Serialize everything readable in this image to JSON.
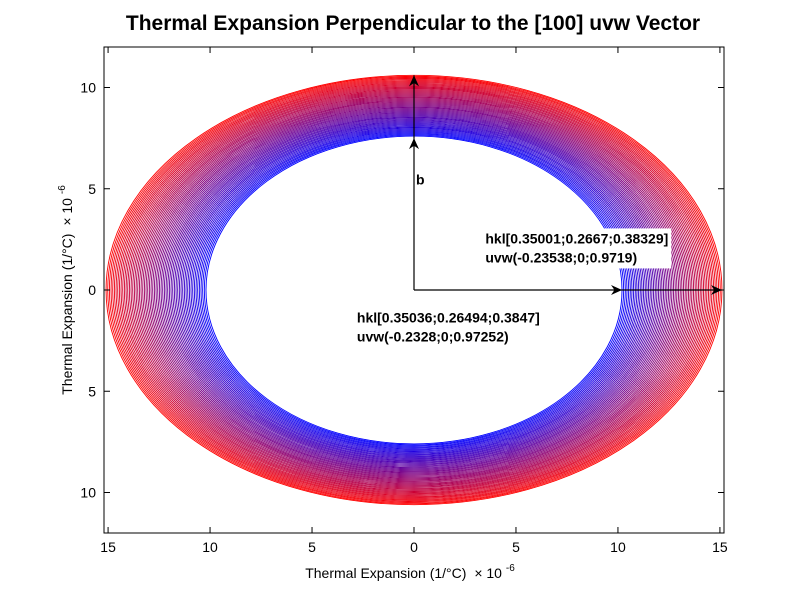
{
  "chart_data": {
    "type": "line",
    "title": "Thermal Expansion Perpendicular to the [100] uvw Vector",
    "xlabel": "Thermal Expansion (1/°C)",
    "ylabel": "Thermal Expansion (1/°C)",
    "axis_multiplier": "× 10",
    "axis_exponent": "-6",
    "xlim": [
      -15.2,
      15.2
    ],
    "ylim": [
      -12,
      12
    ],
    "xticks": [
      -15,
      -10,
      -5,
      0,
      5,
      10,
      15
    ],
    "xtick_labels": [
      "15",
      "10",
      "5",
      "0",
      "5",
      "10",
      "15"
    ],
    "yticks": [
      10,
      5,
      0,
      -5,
      -10
    ],
    "ytick_labels": [
      "10",
      "5",
      "0",
      "5",
      "10"
    ],
    "grid": false,
    "inner_ellipse": {
      "a": 10.2,
      "b": 7.6,
      "color": "#0000ff"
    },
    "outer_ellipse": {
      "a": 15.1,
      "b": 10.6,
      "color": "#ff0000"
    },
    "curve_count": 60,
    "vectors": [
      {
        "label": "b",
        "from": [
          0,
          0
        ],
        "to": [
          0,
          7.5
        ]
      },
      {
        "label": "",
        "from": [
          0,
          7.5
        ],
        "to": [
          0,
          10.6
        ]
      },
      {
        "label": "",
        "from": [
          0,
          0
        ],
        "to": [
          10.2,
          0
        ]
      },
      {
        "label": "",
        "from": [
          10.2,
          0
        ],
        "to": [
          15.1,
          0
        ]
      }
    ],
    "annotations": [
      {
        "id": "outer",
        "lines": [
          "hkl[0.35001;0.2667;0.38329]",
          "uvw(-0.23538;0;0.9719)"
        ],
        "x": 3.5,
        "y": 2.3
      },
      {
        "id": "inner",
        "lines": [
          "hkl[0.35036;0.26494;0.3847]",
          "uvw(-0.2328;0;0.97252)"
        ],
        "x": -2.8,
        "y": -1.6
      }
    ],
    "vector_label": "b",
    "vector_label_pos": [
      0.1,
      5.2
    ]
  }
}
